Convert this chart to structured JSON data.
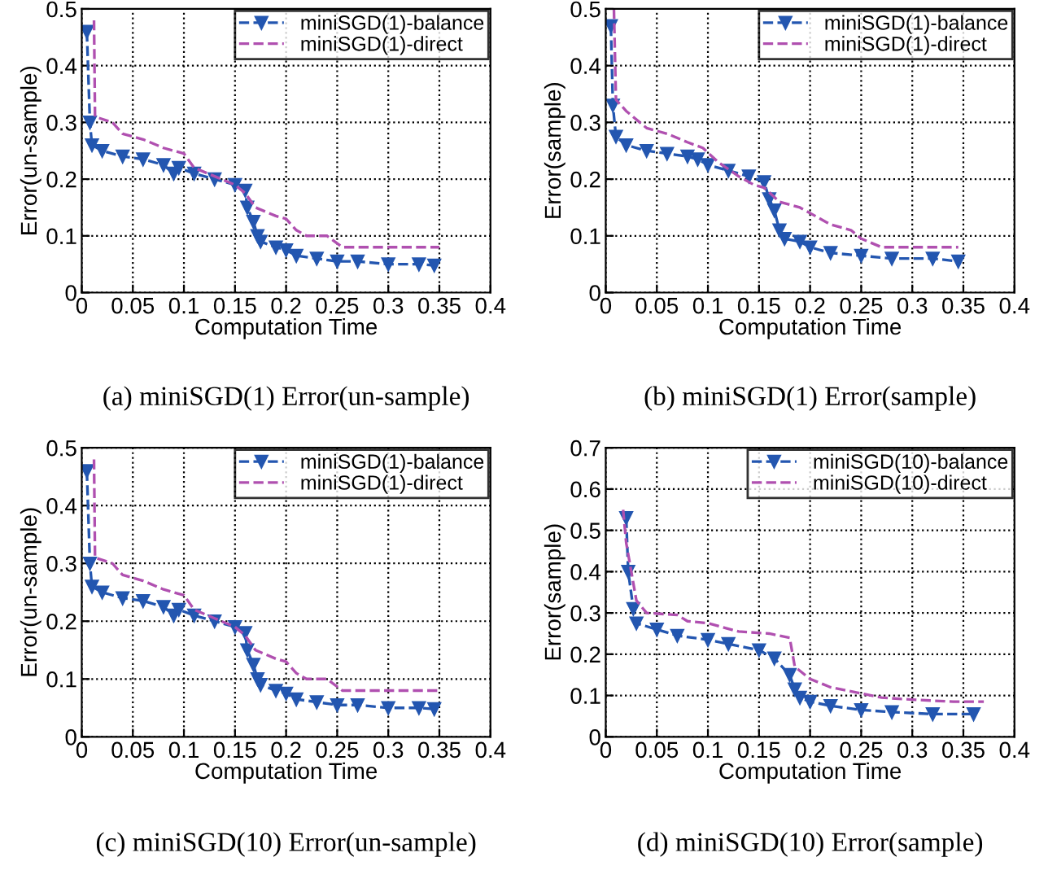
{
  "chart_data": [
    {
      "type": "line",
      "title": "(a) miniSGD(1) Error(un-sample)",
      "xlabel": "Computation Time",
      "ylabel": "Error(un-sample)",
      "xlim": [
        0,
        0.4
      ],
      "ylim": [
        0,
        0.5
      ],
      "xticks": [
        0,
        0.05,
        0.1,
        0.15,
        0.2,
        0.25,
        0.3,
        0.35,
        0.4
      ],
      "yticks": [
        0,
        0.1,
        0.2,
        0.3,
        0.4,
        0.5
      ],
      "grid": true,
      "legend": "top right",
      "line_style": "dashed",
      "series": [
        {
          "name": "miniSGD(1)-balance",
          "color": "#2356b0",
          "marker": "triangle",
          "x": [
            0.005,
            0.008,
            0.01,
            0.02,
            0.04,
            0.06,
            0.08,
            0.09,
            0.095,
            0.11,
            0.13,
            0.15,
            0.16,
            0.162,
            0.168,
            0.172,
            0.175,
            0.19,
            0.2,
            0.21,
            0.23,
            0.25,
            0.27,
            0.3,
            0.33,
            0.345
          ],
          "values": [
            0.46,
            0.3,
            0.26,
            0.25,
            0.24,
            0.235,
            0.225,
            0.21,
            0.22,
            0.21,
            0.2,
            0.19,
            0.18,
            0.15,
            0.125,
            0.1,
            0.09,
            0.08,
            0.075,
            0.065,
            0.06,
            0.055,
            0.055,
            0.05,
            0.05,
            0.048
          ]
        },
        {
          "name": "miniSGD(1)-direct",
          "color": "#b050b0",
          "marker": "none",
          "x": [
            0.012,
            0.013,
            0.03,
            0.04,
            0.06,
            0.08,
            0.1,
            0.11,
            0.13,
            0.15,
            0.16,
            0.17,
            0.19,
            0.2,
            0.21,
            0.22,
            0.24,
            0.255,
            0.3,
            0.35
          ],
          "values": [
            0.48,
            0.31,
            0.3,
            0.28,
            0.27,
            0.255,
            0.245,
            0.22,
            0.205,
            0.19,
            0.175,
            0.15,
            0.135,
            0.13,
            0.11,
            0.1,
            0.1,
            0.08,
            0.08,
            0.08
          ]
        }
      ]
    },
    {
      "type": "line",
      "title": "(b) miniSGD(1) Error(sample)",
      "xlabel": "Computation Time",
      "ylabel": "Error(sample)",
      "xlim": [
        0,
        0.4
      ],
      "ylim": [
        0,
        0.5
      ],
      "xticks": [
        0,
        0.05,
        0.1,
        0.15,
        0.2,
        0.25,
        0.3,
        0.35,
        0.4
      ],
      "yticks": [
        0,
        0.1,
        0.2,
        0.3,
        0.4,
        0.5
      ],
      "grid": true,
      "legend": "top right",
      "line_style": "dashed",
      "series": [
        {
          "name": "miniSGD(1)-balance",
          "color": "#2356b0",
          "marker": "triangle",
          "x": [
            0.005,
            0.007,
            0.01,
            0.02,
            0.04,
            0.06,
            0.08,
            0.09,
            0.1,
            0.12,
            0.14,
            0.155,
            0.16,
            0.165,
            0.17,
            0.175,
            0.19,
            0.2,
            0.22,
            0.25,
            0.28,
            0.32,
            0.345
          ],
          "values": [
            0.47,
            0.33,
            0.275,
            0.26,
            0.25,
            0.245,
            0.24,
            0.235,
            0.225,
            0.215,
            0.205,
            0.195,
            0.165,
            0.145,
            0.11,
            0.095,
            0.09,
            0.08,
            0.07,
            0.065,
            0.06,
            0.06,
            0.055
          ]
        },
        {
          "name": "miniSGD(1)-direct",
          "color": "#b050b0",
          "marker": "none",
          "x": [
            0.008,
            0.01,
            0.02,
            0.04,
            0.06,
            0.08,
            0.095,
            0.11,
            0.13,
            0.145,
            0.155,
            0.17,
            0.19,
            0.2,
            0.22,
            0.24,
            0.25,
            0.27,
            0.3,
            0.345
          ],
          "values": [
            0.5,
            0.34,
            0.32,
            0.29,
            0.28,
            0.265,
            0.255,
            0.23,
            0.205,
            0.19,
            0.185,
            0.16,
            0.15,
            0.14,
            0.12,
            0.11,
            0.095,
            0.08,
            0.08,
            0.08
          ]
        }
      ]
    },
    {
      "type": "line",
      "title": "(c) miniSGD(10) Error(un-sample)",
      "xlabel": "Computation Time",
      "ylabel": "Error(un-sample)",
      "xlim": [
        0,
        0.4
      ],
      "ylim": [
        0,
        0.5
      ],
      "xticks": [
        0,
        0.05,
        0.1,
        0.15,
        0.2,
        0.25,
        0.3,
        0.35,
        0.4
      ],
      "yticks": [
        0,
        0.1,
        0.2,
        0.3,
        0.4,
        0.5
      ],
      "grid": true,
      "legend": "top right",
      "line_style": "dashed",
      "series": [
        {
          "name": "miniSGD(1)-balance",
          "color": "#2356b0",
          "marker": "triangle",
          "x": [
            0.005,
            0.008,
            0.01,
            0.02,
            0.04,
            0.06,
            0.08,
            0.09,
            0.095,
            0.11,
            0.13,
            0.15,
            0.16,
            0.162,
            0.168,
            0.172,
            0.175,
            0.19,
            0.2,
            0.21,
            0.23,
            0.25,
            0.27,
            0.3,
            0.33,
            0.345
          ],
          "values": [
            0.46,
            0.3,
            0.26,
            0.25,
            0.24,
            0.235,
            0.225,
            0.21,
            0.22,
            0.21,
            0.2,
            0.19,
            0.18,
            0.15,
            0.125,
            0.1,
            0.09,
            0.08,
            0.075,
            0.065,
            0.06,
            0.055,
            0.055,
            0.05,
            0.05,
            0.048
          ]
        },
        {
          "name": "miniSGD(1)-direct",
          "color": "#b050b0",
          "marker": "none",
          "x": [
            0.012,
            0.013,
            0.03,
            0.04,
            0.06,
            0.08,
            0.1,
            0.11,
            0.13,
            0.15,
            0.16,
            0.17,
            0.19,
            0.2,
            0.21,
            0.22,
            0.24,
            0.255,
            0.3,
            0.35
          ],
          "values": [
            0.48,
            0.31,
            0.3,
            0.28,
            0.27,
            0.255,
            0.245,
            0.22,
            0.205,
            0.19,
            0.175,
            0.15,
            0.135,
            0.13,
            0.11,
            0.1,
            0.1,
            0.08,
            0.08,
            0.08
          ]
        }
      ]
    },
    {
      "type": "line",
      "title": "(d) miniSGD(10) Error(sample)",
      "xlabel": "Computation Time",
      "ylabel": "Error(sample)",
      "xlim": [
        0,
        0.4
      ],
      "ylim": [
        0,
        0.7
      ],
      "xticks": [
        0,
        0.05,
        0.1,
        0.15,
        0.2,
        0.25,
        0.3,
        0.35,
        0.4
      ],
      "yticks": [
        0,
        0.1,
        0.2,
        0.3,
        0.4,
        0.5,
        0.6,
        0.7
      ],
      "grid": true,
      "legend": "top right",
      "line_style": "dashed",
      "series": [
        {
          "name": "miniSGD(10)-balance",
          "color": "#2356b0",
          "marker": "triangle",
          "x": [
            0.02,
            0.022,
            0.027,
            0.03,
            0.05,
            0.07,
            0.1,
            0.12,
            0.15,
            0.165,
            0.18,
            0.185,
            0.19,
            0.2,
            0.22,
            0.25,
            0.28,
            0.32,
            0.36
          ],
          "values": [
            0.53,
            0.4,
            0.31,
            0.275,
            0.26,
            0.245,
            0.235,
            0.225,
            0.21,
            0.19,
            0.15,
            0.115,
            0.095,
            0.085,
            0.075,
            0.065,
            0.06,
            0.055,
            0.055
          ]
        },
        {
          "name": "miniSGD(10)-direct",
          "color": "#b050b0",
          "marker": "none",
          "x": [
            0.017,
            0.02,
            0.025,
            0.03,
            0.04,
            0.07,
            0.08,
            0.1,
            0.13,
            0.16,
            0.18,
            0.185,
            0.2,
            0.22,
            0.25,
            0.27,
            0.3,
            0.34,
            0.37
          ],
          "values": [
            0.55,
            0.47,
            0.4,
            0.33,
            0.3,
            0.295,
            0.28,
            0.275,
            0.255,
            0.25,
            0.24,
            0.17,
            0.14,
            0.12,
            0.105,
            0.095,
            0.09,
            0.085,
            0.085
          ]
        }
      ]
    }
  ]
}
